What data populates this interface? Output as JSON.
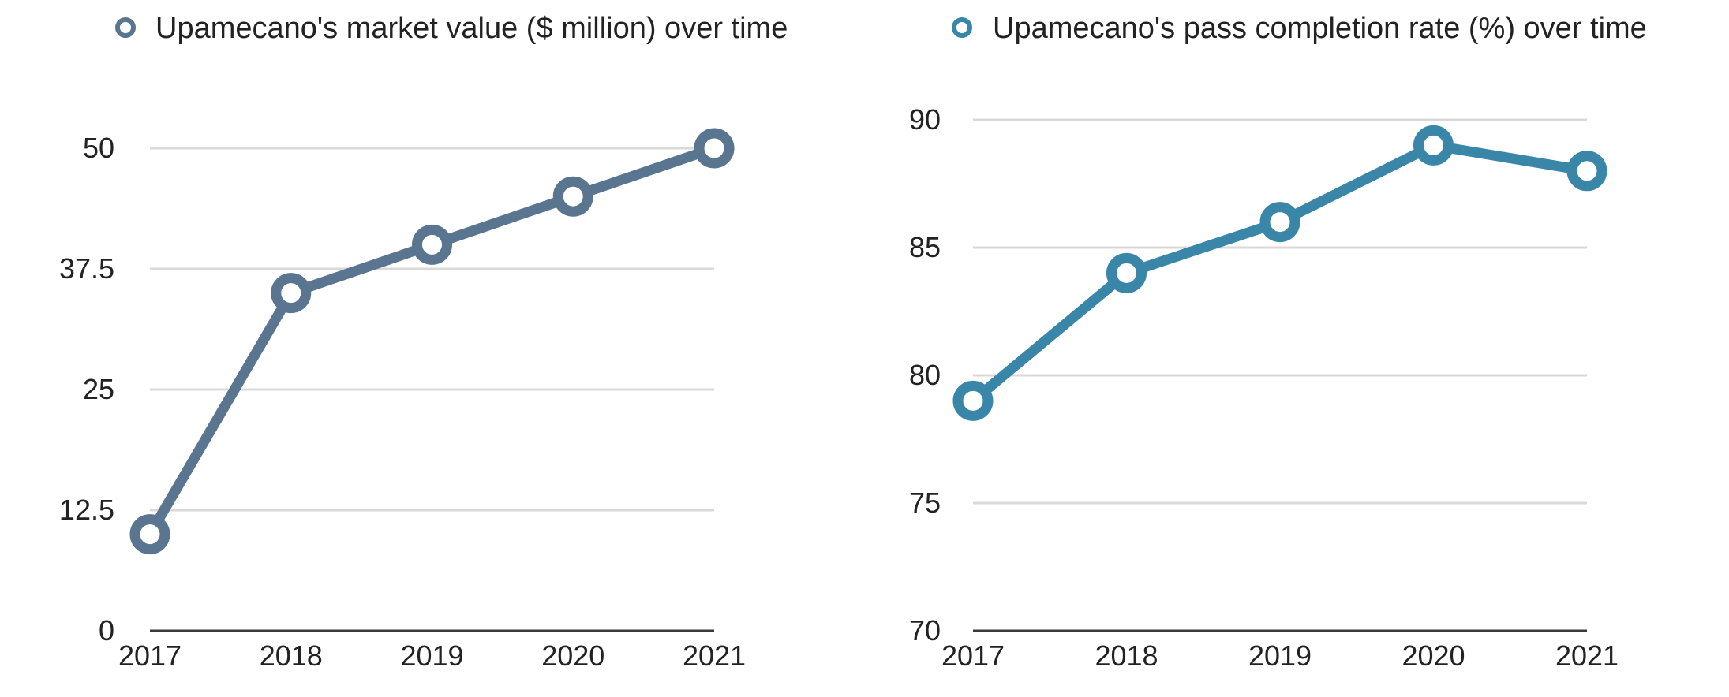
{
  "chart_data": [
    {
      "type": "line",
      "categories": [
        "2017",
        "2018",
        "2019",
        "2020",
        "2021"
      ],
      "series": [
        {
          "name": "Upamecano's market value ($ million) over time",
          "values": [
            10,
            35,
            40,
            45,
            50
          ],
          "color": "#5a7590"
        }
      ],
      "y_ticks": [
        "0",
        "12.5",
        "25",
        "37.5",
        "50"
      ],
      "ylim": [
        0,
        50
      ],
      "grid": true,
      "legend_position": "top"
    },
    {
      "type": "line",
      "categories": [
        "2017",
        "2018",
        "2019",
        "2020",
        "2021"
      ],
      "series": [
        {
          "name": "Upamecano's pass completion rate (%) over time",
          "values": [
            79,
            84,
            86,
            89,
            88
          ],
          "color": "#3a86a8"
        }
      ],
      "y_ticks": [
        "70",
        "75",
        "80",
        "85",
        "90"
      ],
      "ylim": [
        70,
        90
      ],
      "grid": true,
      "legend_position": "top"
    }
  ]
}
